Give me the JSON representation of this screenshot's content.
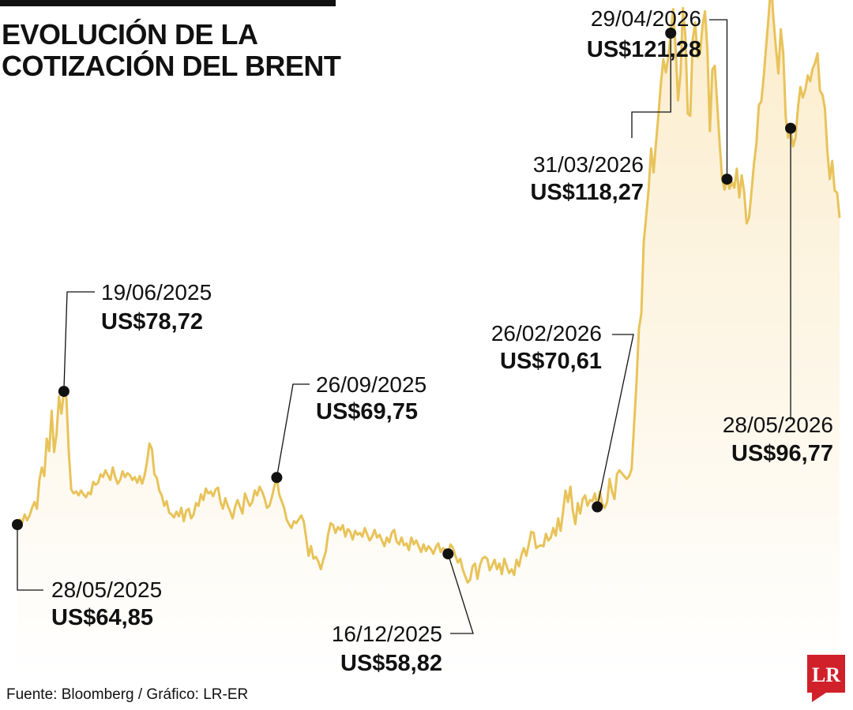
{
  "title": {
    "line1": "EVOLUCIÓN DE LA",
    "line2": "COTIZACIÓN DEL BRENT"
  },
  "source": "Fuente: Bloomberg / Gráfico: LR-ER",
  "logo": {
    "text": "LR",
    "color": "#d0202a"
  },
  "colors": {
    "line": "#e8c35a",
    "fill_top": "#fbeccb",
    "fill_bottom": "#ffffff",
    "marker": "#111111"
  },
  "chart_data": {
    "type": "line",
    "title": "EVOLUCIÓN DE LA COTIZACIÓN DEL BRENT",
    "xlabel": "",
    "ylabel": "",
    "x_range": [
      "28/05/2025",
      "28/05/2026"
    ],
    "ylim": [
      40,
      130
    ],
    "grid": false,
    "legend": "none",
    "series": [
      {
        "values": [
          64.85,
          65.4,
          65.1,
          65.9,
          65.3,
          65.8,
          66.6,
          67.2,
          66.5,
          69.5,
          70.8,
          69.9,
          73.8,
          72.5,
          76.7,
          72.4,
          74.3,
          78.2,
          76.4,
          78.72,
          78.1,
          72.4,
          68.5,
          68.1,
          68.3,
          67.9,
          68.4,
          68.0,
          67.7,
          68.2,
          68.0,
          69.3,
          69.0,
          69.2,
          70.1,
          69.8,
          70.5,
          70.0,
          69.5,
          70.8,
          69.8,
          69.1,
          69.5,
          70.4,
          69.8,
          70.2,
          70.0,
          69.5,
          69.8,
          69.2,
          69.9,
          69.1,
          70.0,
          71.4,
          73.3,
          72.7,
          70.1,
          69.7,
          68.4,
          67.9,
          66.8,
          67.3,
          66.1,
          65.9,
          65.6,
          66.2,
          65.7,
          66.6,
          65.2,
          66.3,
          66.5,
          65.5,
          65.9,
          67.1,
          66.8,
          68.0,
          67.4,
          68.6,
          68.1,
          68.3,
          67.8,
          68.5,
          68.7,
          67.2,
          66.5,
          67.6,
          66.8,
          66.2,
          65.5,
          66.7,
          67.4,
          66.7,
          66.0,
          68.1,
          67.4,
          66.8,
          67.2,
          68.4,
          67.9,
          68.8,
          68.3,
          67.6,
          66.6,
          66.8,
          67.7,
          68.8,
          69.75,
          68.0,
          67.3,
          66.6,
          65.4,
          64.9,
          64.5,
          65.2,
          65.0,
          65.4,
          65.8,
          65.2,
          63.5,
          61.6,
          62.6,
          61.3,
          61.5,
          61.0,
          60.2,
          61.2,
          62.0,
          63.9,
          65.0,
          64.8,
          64.0,
          64.6,
          64.3,
          64.8,
          63.6,
          64.4,
          64.1,
          63.3,
          64.2,
          63.8,
          64.0,
          63.6,
          64.5,
          63.8,
          63.2,
          63.6,
          64.3,
          63.5,
          63.8,
          63.2,
          62.6,
          63.5,
          63.0,
          64.0,
          64.3,
          63.1,
          62.8,
          63.5,
          62.7,
          62.9,
          62.2,
          63.5,
          62.8,
          63.2,
          62.6,
          62.0,
          62.8,
          62.1,
          62.6,
          62.3,
          61.8,
          62.5,
          62.9,
          62.0,
          62.4,
          62.2,
          61.8,
          62.8,
          62.4,
          61.6,
          60.9,
          61.3,
          60.2,
          59.5,
          58.82,
          59.1,
          60.5,
          60.8,
          59.2,
          60.6,
          61.3,
          61.5,
          61.3,
          60.1,
          60.6,
          61.2,
          60.2,
          60.8,
          59.7,
          61.3,
          60.5,
          59.8,
          60.2,
          59.6,
          61.2,
          60.5,
          61.7,
          62.4,
          61.6,
          62.8,
          64.1,
          64.0,
          62.4,
          62.6,
          62.7,
          62.6,
          63.9,
          63.2,
          63.5,
          64.5,
          63.7,
          65.5,
          64.2,
          66.2,
          68.4,
          67.2,
          68.8,
          66.3,
          64.9,
          67.1,
          66.0,
          67.5,
          67.9,
          66.8,
          67.4,
          67.3,
          68.1,
          66.7,
          68.3,
          67.0,
          66.6,
          67.2,
          69.6,
          68.3,
          67.5,
          70.1,
          70.5,
          70.2,
          69.9,
          69.6,
          69.9,
          70.61,
          75.2,
          79.5,
          85.2,
          86.8,
          94.3,
          97.0,
          99.8,
          104.0,
          101.5,
          104.6,
          107.5,
          110.8,
          113.3,
          111.9,
          113.5,
          116.0,
          118.5,
          114.5,
          109.0,
          111.8,
          118.6,
          115.6,
          107.6,
          107.4,
          115.4,
          117.1,
          113.5,
          114.0,
          116.8,
          118.27,
          114.2,
          105.8,
          112.2,
          112.6,
          108.6,
          104.5,
          100.9,
          99.7,
          100.8,
          99.8,
          100.5,
          99.9,
          101.9,
          98.9,
          101.2,
          99.5,
          96.2,
          96.8,
          99.5,
          102.4,
          104.5,
          108.5,
          108.9,
          111.5,
          114.7,
          117.8,
          121.28,
          117.5,
          114.5,
          111.8,
          116.4,
          113.9,
          107.3,
          105.1,
          106.1,
          104.2,
          105.1,
          108.2,
          110.4,
          109.3,
          110.1,
          111.6,
          111.0,
          112.3,
          112.9,
          113.9,
          110.0,
          109.6,
          108.2,
          103.8,
          100.8,
          102.7,
          99.6,
          99.4,
          96.77
        ],
        "line_color": "#e8c35a"
      }
    ],
    "annotations": [
      {
        "date": "28/05/2025",
        "value_label": "US$64,85",
        "index": 0
      },
      {
        "date": "19/06/2025",
        "value_label": "US$78,72",
        "index": 19
      },
      {
        "date": "26/09/2025",
        "value_label": "US$69,75",
        "index": 106
      },
      {
        "date": "16/12/2025",
        "value_label": "US$58,82",
        "index": 176
      },
      {
        "date": "26/02/2026",
        "value_label": "US$70,61",
        "index": 237
      },
      {
        "date": "31/03/2026",
        "value_label": "US$118,27",
        "index": 267
      },
      {
        "date": "29/04/2026",
        "value_label": "US$121,28",
        "index": 290
      },
      {
        "date": "28/05/2026",
        "value_label": "US$96,77",
        "index": 316
      }
    ]
  }
}
